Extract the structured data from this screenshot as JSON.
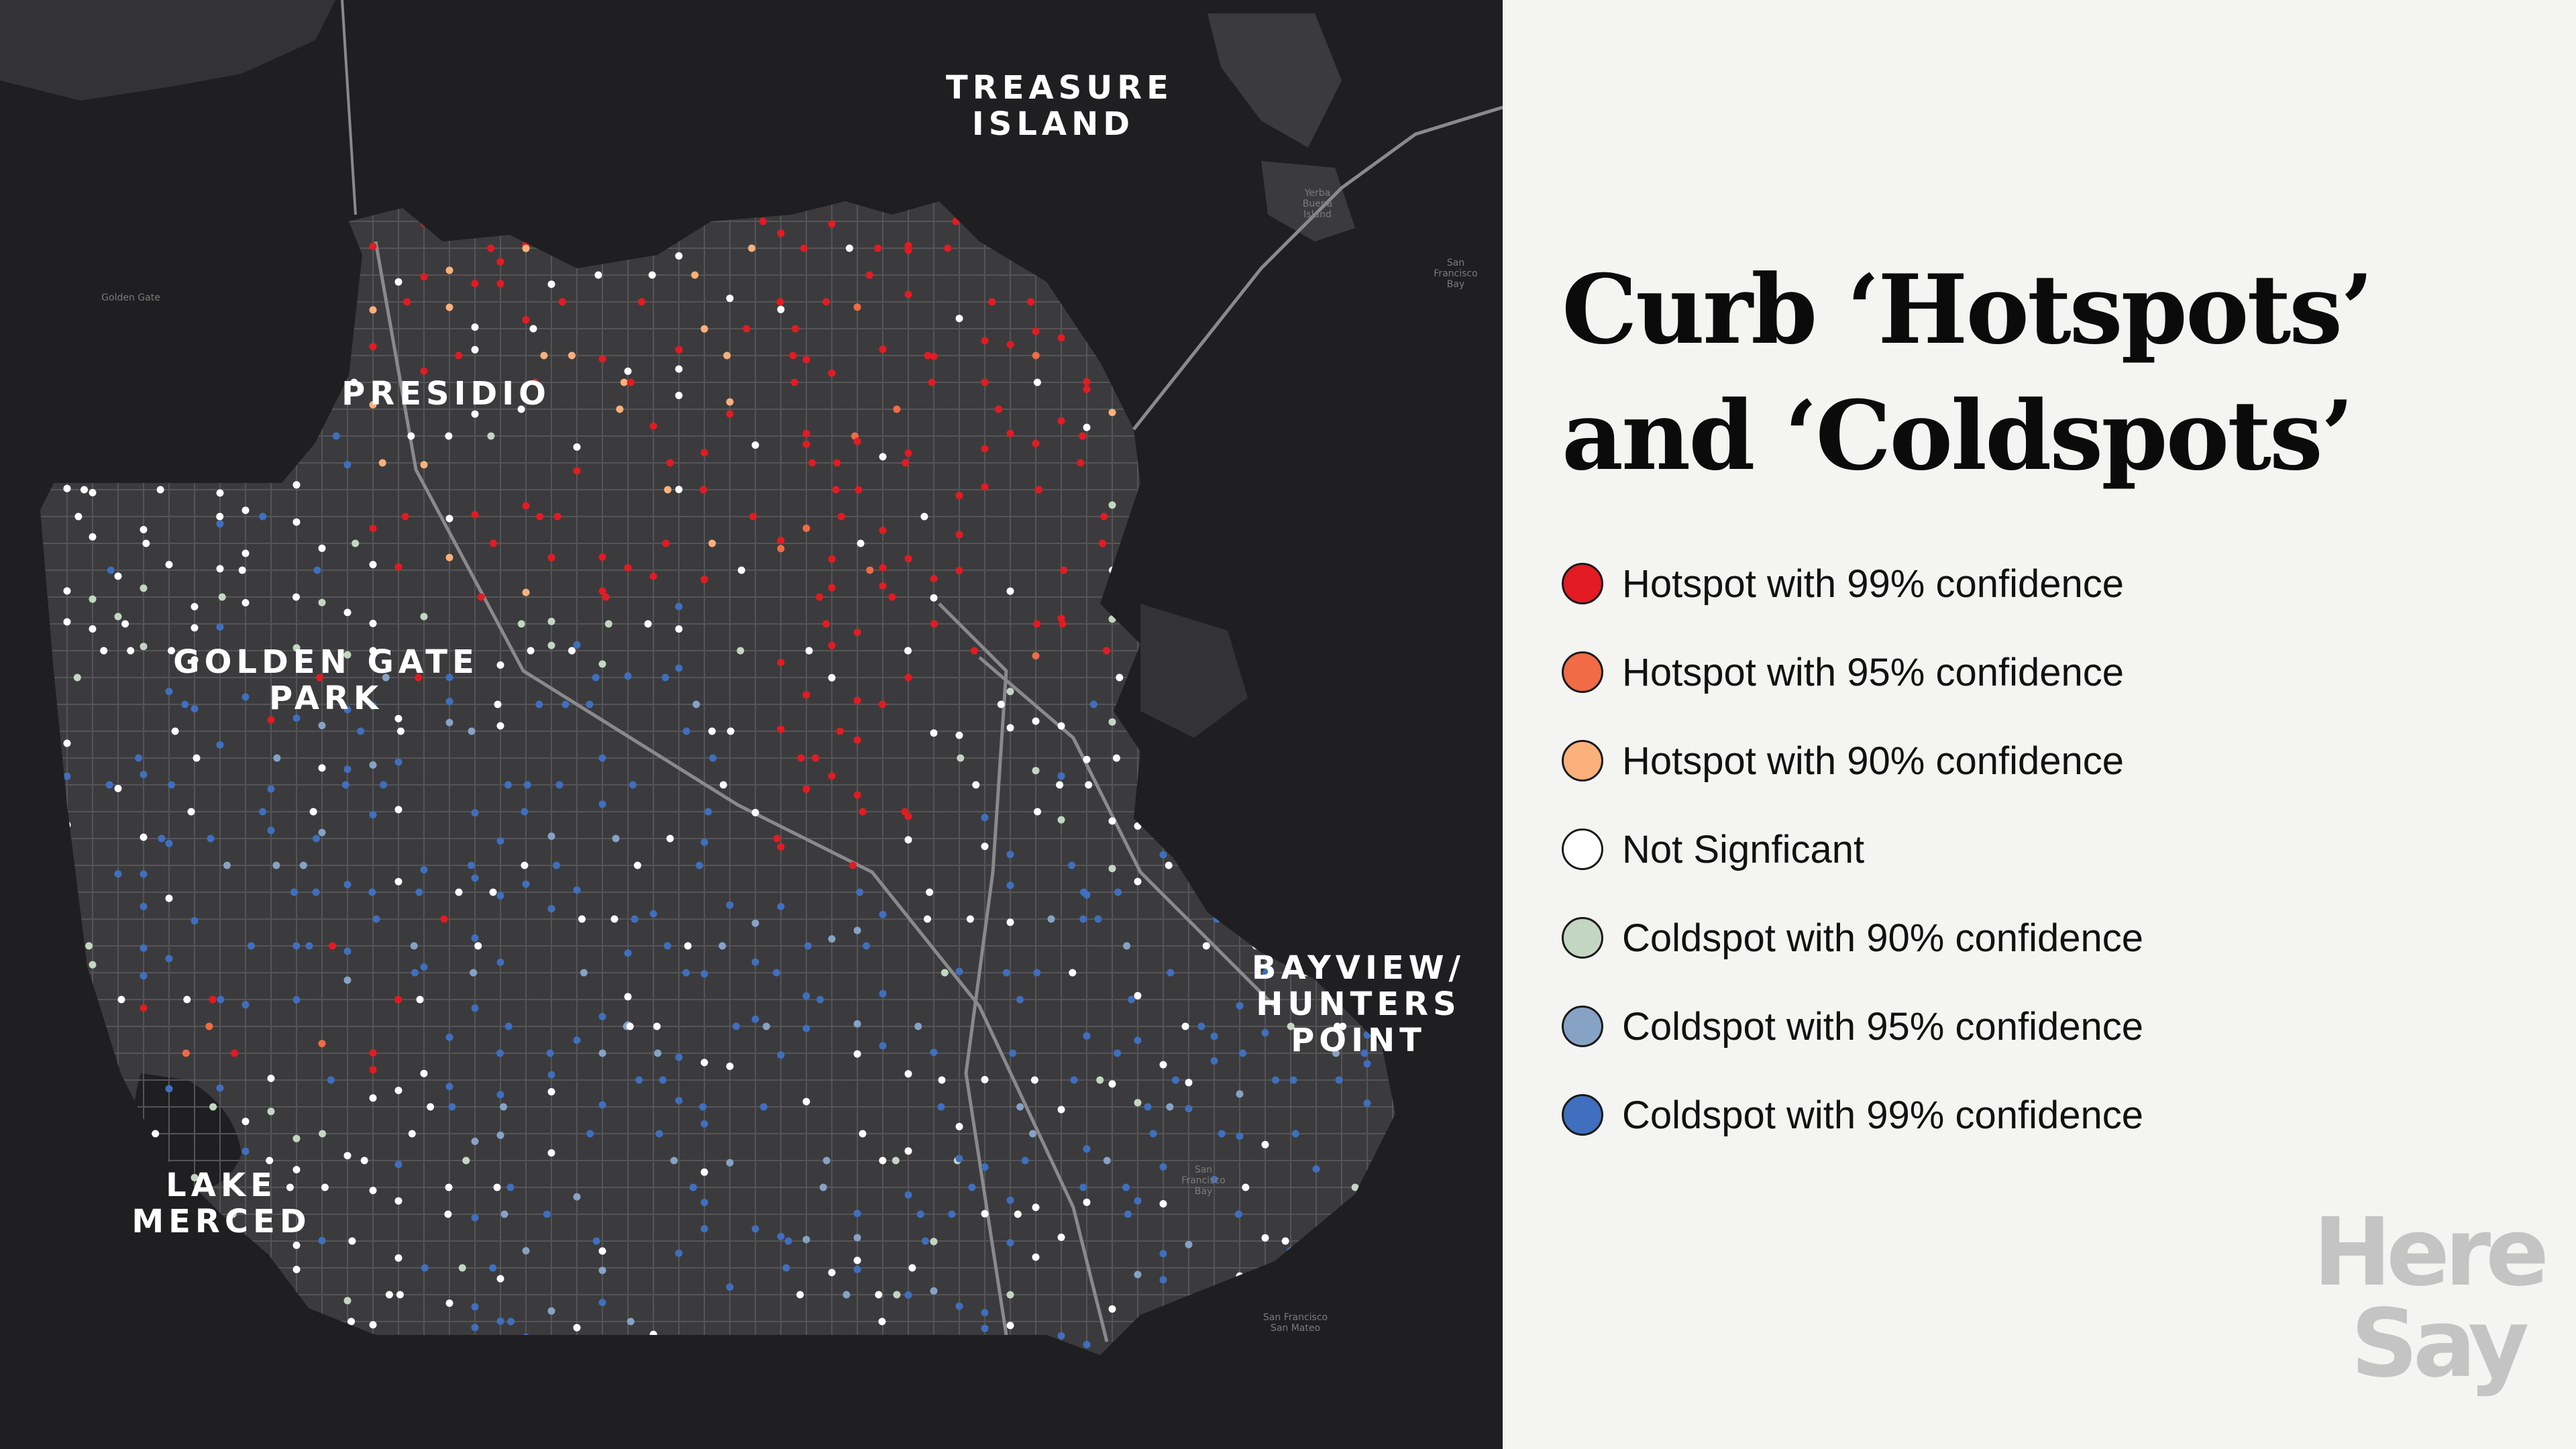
{
  "title": "Curb ‘Hotspots’ and ‘Coldspots’",
  "legend": [
    {
      "label": "Hotspot with 99% confidence",
      "color": "#e31b23"
    },
    {
      "label": "Hotspot with 95% confidence",
      "color": "#f06b46"
    },
    {
      "label": "Hotspot with 90% confidence",
      "color": "#fbb07c"
    },
    {
      "label": "Not Signficant",
      "color": "#ffffff"
    },
    {
      "label": "Coldspot with 90% confidence",
      "color": "#c3d6c2"
    },
    {
      "label": "Coldspot with 95% confidence",
      "color": "#86a2c5"
    },
    {
      "label": "Coldspot with 99% confidence",
      "color": "#3f6fbe"
    }
  ],
  "map": {
    "labels": {
      "treasure_island": "TREASURE\nISLAND",
      "presidio": "PRESIDIO",
      "golden_gate_park": "GOLDEN GATE PARK",
      "bayview": "BAYVIEW/\nHUNTERS\nPOINT",
      "lake_merced": "LAKE\nMERCED"
    },
    "small_labels": {
      "golden_gate": "Golden Gate",
      "yerba_buena": "Yerba\nBuena\nIsland",
      "sf_bay": "San\nFrancisco\nBay",
      "sf_bay_2": "San\nFrancisco\nBay",
      "sf_san_mateo": "San Francisco\nSan Mateo"
    },
    "colors": {
      "water": "#1f1f21",
      "land": "#3b3b3d",
      "land_dark": "#333335",
      "road": "#555558",
      "highway": "#8a8a8d"
    }
  },
  "brand": {
    "line1": "Here",
    "line2": "Say"
  }
}
